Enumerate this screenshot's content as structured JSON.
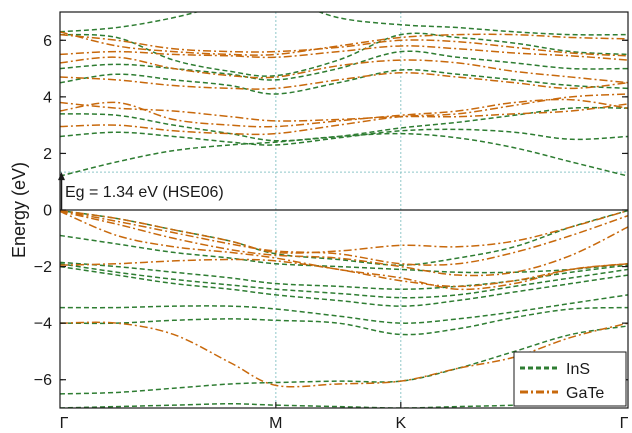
{
  "chart_data": {
    "type": "line",
    "title": "",
    "xlabel": "",
    "ylabel": "Energy (eV)",
    "ylim": [
      -7,
      7
    ],
    "y_ticks": [
      -6,
      -4,
      -2,
      0,
      2,
      4,
      6
    ],
    "x_ticks": [
      {
        "label": "Γ",
        "pos": 0
      },
      {
        "label": "M",
        "pos": 0.38
      },
      {
        "label": "K",
        "pos": 0.6
      },
      {
        "label": "Γ",
        "pos": 1
      }
    ],
    "fermi_level": 0,
    "annotation": {
      "text": "Eg = 1.34 eV (HSE06)",
      "gap_from": 0,
      "gap_to": 1.34
    },
    "legend": {
      "placement": "bottom-right"
    },
    "k_path": [
      0,
      0.1,
      0.2,
      0.3,
      0.38,
      0.49,
      0.6,
      0.7,
      0.8,
      0.9,
      1
    ],
    "series": [
      {
        "name": "InS",
        "color": "#2e7d32",
        "style": "dashed",
        "bands": [
          [
            -7.0,
            -6.95,
            -6.9,
            -6.85,
            -6.9,
            -6.95,
            -7.0,
            -6.95,
            -6.9,
            -6.8,
            -6.7
          ],
          [
            -6.5,
            -6.45,
            -6.3,
            -6.15,
            -6.1,
            -6.05,
            -6.05,
            -5.6,
            -5.0,
            -4.4,
            -4.1
          ],
          [
            -4.0,
            -4.0,
            -3.9,
            -3.85,
            -3.9,
            -4.0,
            -4.4,
            -4.2,
            -3.8,
            -3.5,
            -3.45
          ],
          [
            -3.45,
            -3.45,
            -3.4,
            -3.4,
            -3.5,
            -3.75,
            -4.0,
            -3.85,
            -3.6,
            -3.3,
            -3.0
          ],
          [
            -2.0,
            -2.3,
            -2.6,
            -2.8,
            -3.0,
            -3.2,
            -3.4,
            -3.2,
            -2.9,
            -2.6,
            -2.3
          ],
          [
            -1.9,
            -2.2,
            -2.45,
            -2.65,
            -2.8,
            -2.95,
            -3.1,
            -3.0,
            -2.7,
            -2.4,
            -2.1
          ],
          [
            -1.85,
            -2.0,
            -2.2,
            -2.4,
            -2.6,
            -2.7,
            -2.8,
            -2.7,
            -2.5,
            -2.2,
            -1.95
          ],
          [
            -0.9,
            -1.2,
            -1.5,
            -1.7,
            -1.9,
            -2.0,
            -2.1,
            -2.2,
            -2.2,
            -2.1,
            -1.9
          ],
          [
            -0.02,
            -0.3,
            -0.7,
            -1.1,
            -1.55,
            -1.75,
            -1.95,
            -1.7,
            -1.3,
            -0.6,
            -0.02
          ],
          [
            1.2,
            1.7,
            2.1,
            2.3,
            2.4,
            2.6,
            2.7,
            2.55,
            2.2,
            1.7,
            1.2
          ],
          [
            2.6,
            2.75,
            2.6,
            2.4,
            2.3,
            2.55,
            2.8,
            2.85,
            2.75,
            2.5,
            2.6
          ],
          [
            3.4,
            3.35,
            3.0,
            2.7,
            2.45,
            2.6,
            2.9,
            3.1,
            3.35,
            3.6,
            3.6
          ],
          [
            4.5,
            4.8,
            4.6,
            4.4,
            4.1,
            4.5,
            4.95,
            4.8,
            4.6,
            4.4,
            4.3
          ],
          [
            5.0,
            5.15,
            5.0,
            4.8,
            4.6,
            5.0,
            5.6,
            5.4,
            5.2,
            5.0,
            5.0
          ],
          [
            6.2,
            6.1,
            5.3,
            4.9,
            4.75,
            5.3,
            6.2,
            6.1,
            5.9,
            5.6,
            5.5
          ],
          [
            6.3,
            6.45,
            6.8,
            7.3,
            7.5,
            6.8,
            6.55,
            6.45,
            6.3,
            6.2,
            6.2
          ]
        ]
      },
      {
        "name": "GaTe",
        "color": "#c8690c",
        "style": "dash-dot",
        "bands": [
          [
            -4.0,
            -4.0,
            -4.4,
            -5.4,
            -6.2,
            -6.15,
            -6.05,
            -5.6,
            -5.2,
            -4.5,
            -4.0
          ],
          [
            -1.95,
            -1.9,
            -1.8,
            -1.75,
            -1.8,
            -2.1,
            -2.5,
            -2.7,
            -2.5,
            -2.1,
            -1.9
          ],
          [
            -0.05,
            -0.9,
            -1.3,
            -1.5,
            -1.7,
            -2.1,
            -2.4,
            -2.8,
            -2.6,
            -2.1,
            -1.9
          ],
          [
            -0.05,
            -0.5,
            -1.0,
            -1.4,
            -1.6,
            -1.7,
            -2.0,
            -2.3,
            -2.2,
            -1.6,
            -0.6
          ],
          [
            -0.03,
            -0.4,
            -0.8,
            -1.2,
            -1.45,
            -1.55,
            -1.9,
            -1.9,
            -1.5,
            -0.9,
            -0.2
          ],
          [
            -0.02,
            -0.3,
            -0.7,
            -1.1,
            -1.5,
            -1.45,
            -1.25,
            -1.3,
            -1.1,
            -0.6,
            -0.02
          ],
          [
            2.95,
            3.0,
            2.8,
            2.7,
            2.7,
            3.0,
            3.3,
            3.4,
            3.7,
            4.0,
            4.1
          ],
          [
            3.5,
            3.8,
            3.2,
            3.0,
            2.95,
            3.15,
            3.35,
            3.5,
            3.8,
            3.9,
            3.6
          ],
          [
            3.8,
            3.6,
            3.5,
            3.3,
            3.15,
            3.2,
            3.3,
            3.3,
            3.4,
            3.5,
            3.75
          ],
          [
            4.7,
            4.6,
            4.4,
            4.3,
            4.3,
            4.6,
            4.85,
            4.7,
            4.5,
            4.3,
            4.5
          ],
          [
            5.2,
            5.4,
            5.0,
            4.75,
            4.7,
            5.1,
            5.3,
            5.2,
            4.9,
            4.7,
            4.5
          ],
          [
            5.5,
            5.6,
            5.5,
            5.45,
            5.4,
            5.6,
            5.8,
            5.7,
            5.55,
            5.45,
            5.3
          ],
          [
            6.2,
            6.0,
            5.7,
            5.6,
            5.6,
            5.75,
            6.0,
            5.95,
            5.75,
            5.55,
            5.45
          ],
          [
            6.3,
            5.8,
            5.6,
            5.5,
            5.5,
            5.8,
            6.1,
            6.2,
            6.2,
            6.1,
            6.05
          ]
        ]
      }
    ]
  }
}
